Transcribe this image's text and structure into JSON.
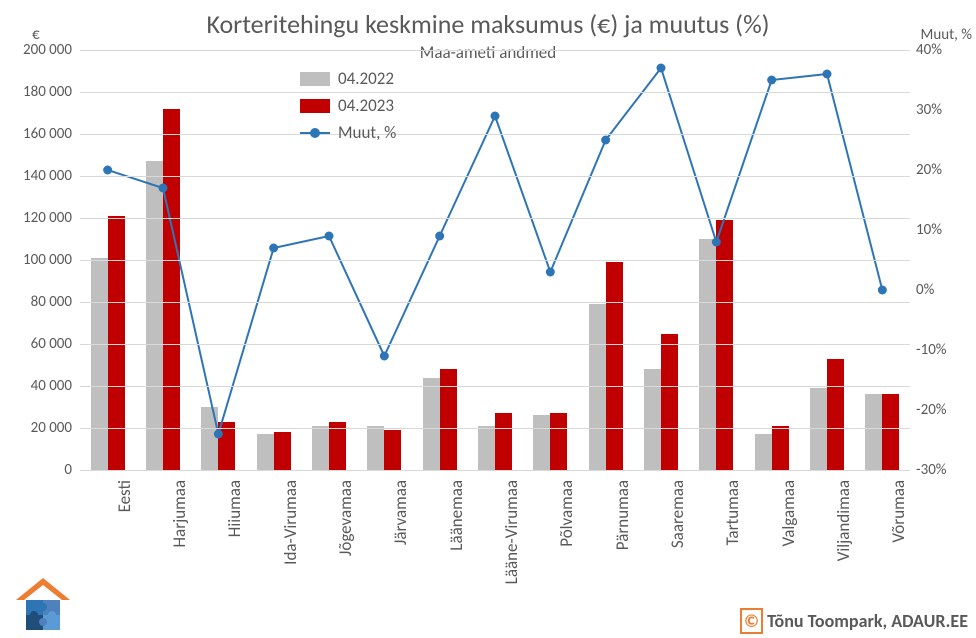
{
  "title": "Korteritehingu keskmine maksumus (€) ja muutus (%)",
  "subtitle": "Maa-ameti andmed",
  "y_left_label": "€",
  "y_right_label": "Muut, %",
  "attribution_symbol": "©",
  "attribution_text": "Tõnu Toompark, ADAUR.EE",
  "legend": {
    "series_a": "04.2022",
    "series_b": "04.2023",
    "series_c": "Muut, %"
  },
  "chart": {
    "type": "bar+line",
    "categories": [
      "Eesti",
      "Harjumaa",
      "Hiiumaa",
      "Ida-Virumaa",
      "Jõgevamaa",
      "Järvamaa",
      "Läänemaa",
      "Lääne-Virumaa",
      "Põlvamaa",
      "Pärnumaa",
      "Saaremaa",
      "Tartumaa",
      "Valgamaa",
      "Viljandimaa",
      "Võrumaa"
    ],
    "series_a_values": [
      101000,
      147000,
      30000,
      17000,
      21000,
      21000,
      44000,
      21000,
      26000,
      79000,
      48000,
      110000,
      17000,
      39000,
      36000
    ],
    "series_b_values": [
      121000,
      172000,
      23000,
      18000,
      23000,
      19000,
      48000,
      27000,
      27000,
      99000,
      65000,
      119000,
      21000,
      53000,
      36000
    ],
    "series_c_values": [
      20,
      17,
      -24,
      7,
      9,
      -11,
      9,
      29,
      3,
      25,
      37,
      8,
      35,
      36,
      0
    ],
    "bar_a_color": "#bfbfbf",
    "bar_b_color": "#c00000",
    "line_color": "#2e75b6",
    "marker_color": "#2e75b6",
    "marker_size": 9,
    "line_width": 2,
    "background_color": "#ffffff",
    "grid_color": "#d9d9d9",
    "y_left": {
      "min": 0,
      "max": 200000,
      "step": 20000
    },
    "y_right": {
      "min": -30,
      "max": 40,
      "step": 10
    },
    "bar_group_width": 0.62,
    "title_fontsize": 26,
    "subtitle_fontsize": 17,
    "axis_label_fontsize": 15,
    "tick_fontsize": 15,
    "cat_label_fontsize": 17,
    "legend_fontsize": 17
  },
  "logo": {
    "roof_color": "#ed7d31",
    "puzzle_colors": [
      "#2e75b6",
      "#4f81bd",
      "#1f4e79",
      "#5b9bd5"
    ]
  }
}
